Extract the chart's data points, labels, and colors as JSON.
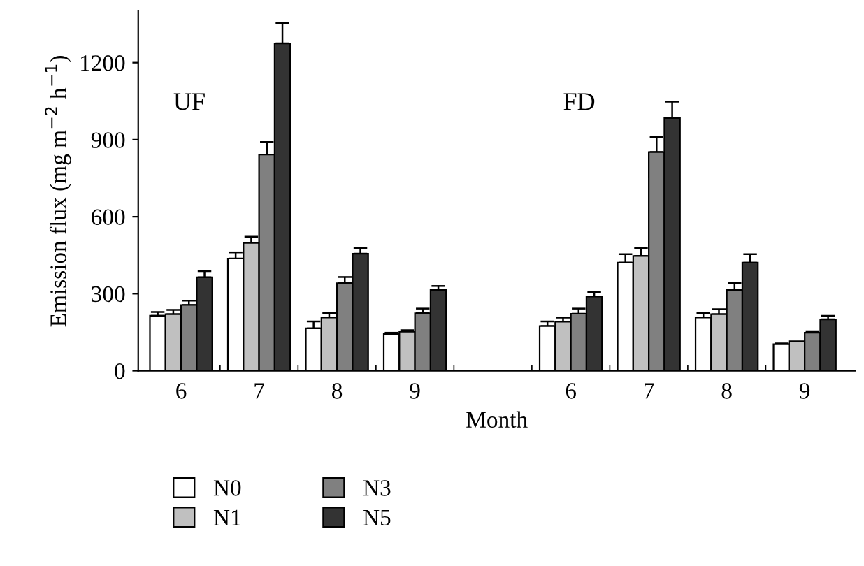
{
  "chart_data": {
    "type": "bar",
    "xlabel": "Month",
    "ylabel": "Emission flux (mg m$^{−2}$ h$^{−1}$)",
    "categories": [
      "6",
      "7",
      "8",
      "9",
      null,
      "6",
      "7",
      "8",
      "9"
    ],
    "series": [
      {
        "name": "N0",
        "color": "#ffffff",
        "values": [
          214,
          437,
          165,
          143,
          null,
          174,
          421,
          207,
          103
        ],
        "errors": [
          15,
          24,
          27,
          5,
          null,
          18,
          33,
          17,
          3
        ]
      },
      {
        "name": "N1",
        "color": "#c0c0c0",
        "values": [
          220,
          498,
          207,
          152,
          null,
          191,
          447,
          220,
          115
        ],
        "errors": [
          17,
          24,
          17,
          6,
          null,
          16,
          31,
          20,
          null
        ]
      },
      {
        "name": "N3",
        "color": "#808080",
        "values": [
          256,
          842,
          341,
          224,
          null,
          222,
          852,
          315,
          148
        ],
        "errors": [
          17,
          49,
          24,
          18,
          null,
          20,
          58,
          26,
          6
        ]
      },
      {
        "name": "N5",
        "color": "#333333",
        "values": [
          364,
          1275,
          456,
          315,
          null,
          289,
          984,
          421,
          200
        ],
        "errors": [
          24,
          80,
          22,
          15,
          null,
          17,
          64,
          33,
          14
        ]
      }
    ],
    "ylim": [
      0,
      1400
    ],
    "yticks": [
      0,
      300,
      600,
      900,
      1200
    ],
    "annotations": [
      "UF",
      "FD"
    ],
    "legend": "bottom",
    "grid": false
  }
}
